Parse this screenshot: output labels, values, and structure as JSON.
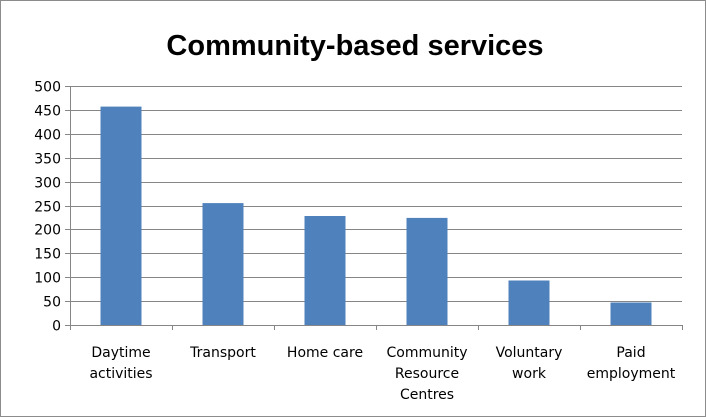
{
  "chart_data": {
    "type": "bar",
    "title": "Community-based services",
    "xlabel": "",
    "ylabel": "",
    "categories": [
      [
        "Daytime",
        "activities"
      ],
      [
        "Transport"
      ],
      [
        "Home care"
      ],
      [
        "Community",
        "Resource",
        "Centres"
      ],
      [
        "Voluntary",
        "work"
      ],
      [
        "Paid",
        "employment"
      ]
    ],
    "values": [
      457,
      255,
      228,
      224,
      93,
      47
    ],
    "ylim": [
      0,
      500
    ],
    "yticks": [
      0,
      50,
      100,
      150,
      200,
      250,
      300,
      350,
      400,
      450,
      500
    ],
    "grid": true,
    "legend": "none",
    "bar_color": "#4F81BD",
    "grid_color": "#868686"
  }
}
